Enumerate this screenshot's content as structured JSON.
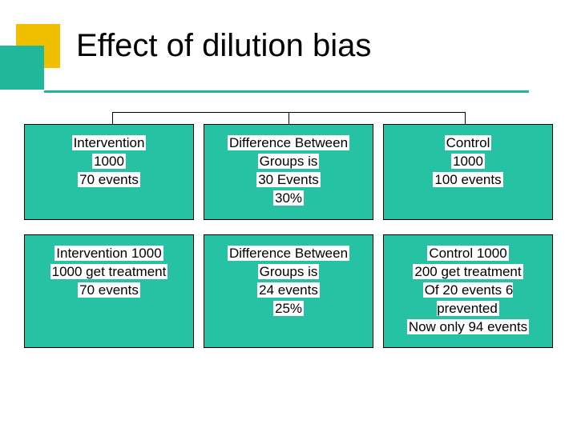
{
  "title": "Effect of dilution bias",
  "colors": {
    "accent_yellow": "#f0c000",
    "accent_teal": "#1fb89b",
    "panel_bg": "#27c2a3",
    "panel_border": "#000000",
    "underline": "#1fb89b",
    "text": "#000000",
    "text_bg": "#ffffff",
    "page_bg": "#ffffff"
  },
  "fonts": {
    "title_size": 40,
    "body_size": 17
  },
  "diagram": {
    "type": "flowchart",
    "rows": [
      {
        "panels": [
          {
            "id": "r1-left",
            "lines": [
              "Intervention",
              "1000",
              "70 events"
            ]
          },
          {
            "id": "r1-mid",
            "lines": [
              "Difference Between",
              "Groups is",
              "30 Events",
              "30%"
            ]
          },
          {
            "id": "r1-right",
            "lines": [
              "Control",
              "1000",
              "100 events"
            ]
          }
        ]
      },
      {
        "panels": [
          {
            "id": "r2-left",
            "lines": [
              "Intervention 1000",
              "1000 get treatment",
              "70 events"
            ]
          },
          {
            "id": "r2-mid",
            "lines": [
              "Difference Between",
              "Groups is",
              "24 events",
              "25%"
            ]
          },
          {
            "id": "r2-right",
            "lines": [
              "Control 1000",
              "200 get treatment",
              "Of 20 events 6 prevented",
              "Now only 94 events"
            ]
          }
        ]
      }
    ]
  }
}
